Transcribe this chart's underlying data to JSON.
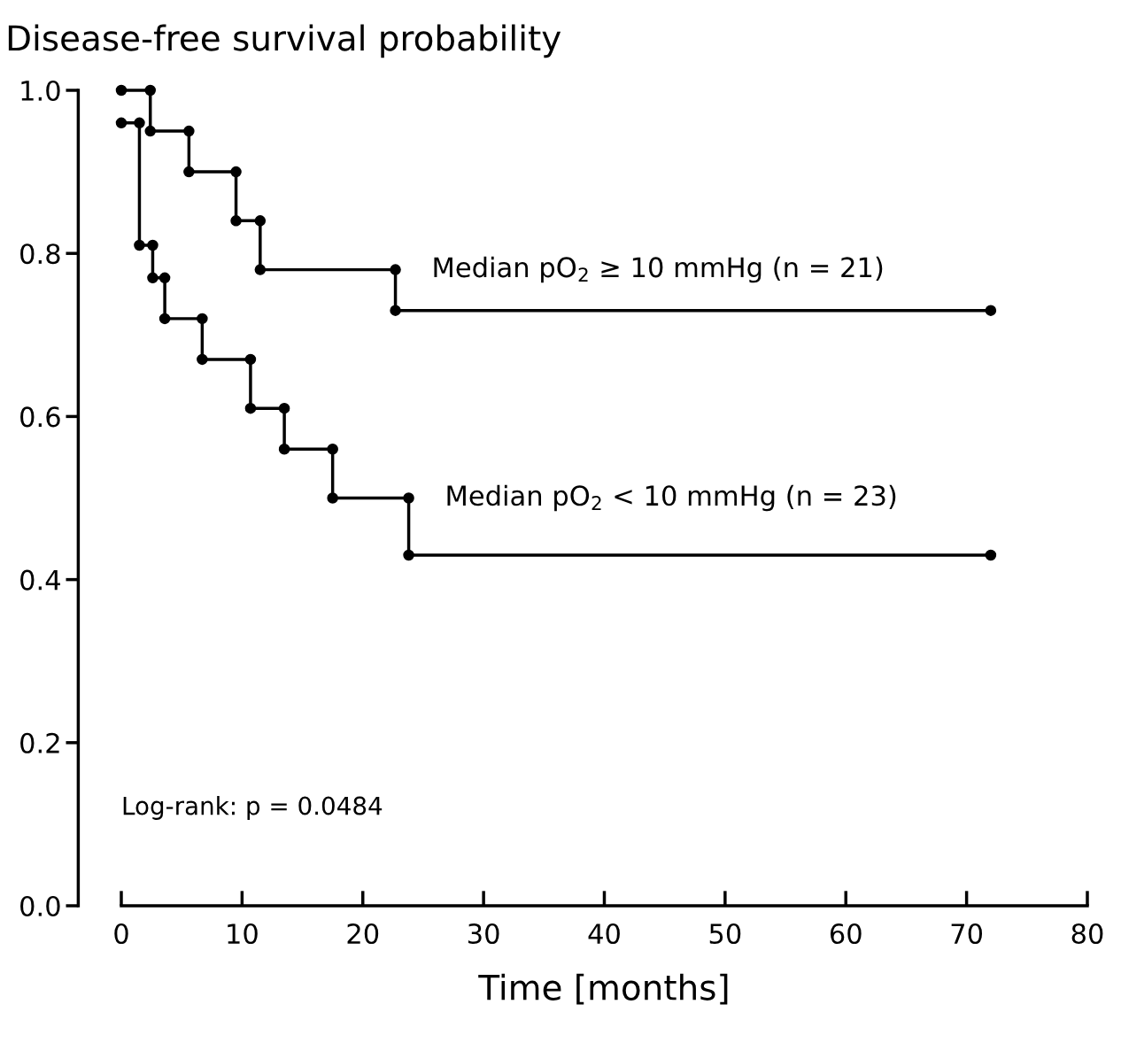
{
  "chart_data": {
    "type": "line",
    "ylabel": "Disease-free survival probability",
    "xlabel": "Time [months]",
    "xlim": [
      0,
      80
    ],
    "xticks": [
      0,
      10,
      20,
      30,
      40,
      50,
      60,
      70,
      80
    ],
    "ylim": [
      0,
      1
    ],
    "yticks": [
      {
        "value": 0,
        "label": "0.0"
      },
      {
        "value": 0.2,
        "label": "0.2"
      },
      {
        "value": 0.4,
        "label": "0.4"
      },
      {
        "value": 0.6,
        "label": "0.6"
      },
      {
        "value": 0.8,
        "label": "0.8"
      },
      {
        "value": 1,
        "label": "1.0"
      }
    ],
    "grid": false,
    "legend": false,
    "marker": "circle",
    "line_style": "solid",
    "series": [
      {
        "name": "Median pO$_{2}$ ≥ 10 mmHg (n = 21)",
        "color": "#000000",
        "x": [
          0,
          2.4,
          2.4,
          5.6,
          5.6,
          9.5,
          9.5,
          11.5,
          11.5,
          22.7,
          22.7,
          72
        ],
        "values": [
          1.0,
          1.0,
          0.95,
          0.95,
          0.9,
          0.9,
          0.84,
          0.84,
          0.78,
          0.78,
          0.73,
          0.73
        ]
      },
      {
        "name": "Median pO$_{2}$ < 10 mmHg (n = 23)",
        "color": "#000000",
        "x": [
          0,
          1.5,
          1.5,
          2.6,
          2.6,
          3.6,
          3.6,
          6.7,
          6.7,
          10.7,
          10.7,
          13.5,
          13.5,
          17.5,
          17.5,
          23.8,
          23.8,
          72
        ],
        "values": [
          0.96,
          0.96,
          0.81,
          0.81,
          0.77,
          0.77,
          0.72,
          0.72,
          0.67,
          0.67,
          0.61,
          0.61,
          0.56,
          0.56,
          0.5,
          0.5,
          0.43,
          0.43
        ]
      }
    ],
    "annotations": [
      "Log-rank: p = 0.0484"
    ]
  }
}
